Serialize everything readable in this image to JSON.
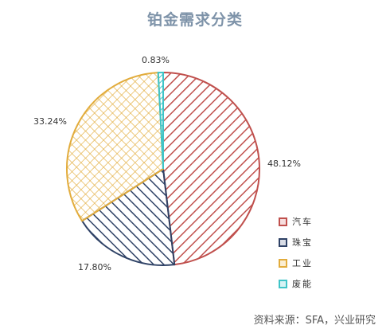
{
  "chart_data": {
    "type": "pie",
    "title": "铂金需求分类",
    "slices": [
      {
        "name": "汽车",
        "value": 48.12,
        "label": "48.12%",
        "color": "#c0504d"
      },
      {
        "name": "珠宝",
        "value": 17.8,
        "label": "17.80%",
        "color": "#2f4266"
      },
      {
        "name": "工业",
        "value": 33.24,
        "label": "33.24%",
        "color": "#e2ac3c"
      },
      {
        "name": "废能",
        "value": 0.83,
        "label": "0.83%",
        "color": "#40c4c8"
      }
    ],
    "legend_position": "right"
  },
  "source": "资料来源：SFA，兴业研究"
}
